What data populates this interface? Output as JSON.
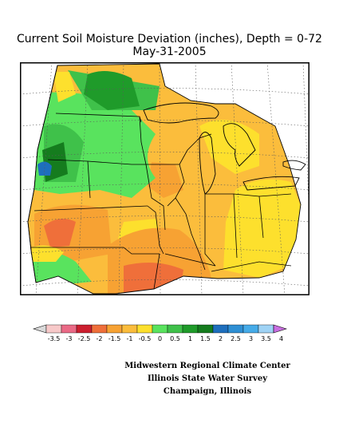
{
  "title": {
    "line1": "Current Soil Moisture Deviation (inches), Depth = 0-72",
    "line2": "May-31-2005"
  },
  "legend": {
    "ticks": [
      "-3.5",
      "-3",
      "-2.5",
      "-2",
      "-1.5",
      "-1",
      "-0.5",
      "0",
      "0.5",
      "1",
      "1.5",
      "2",
      "2.5",
      "3",
      "3.5",
      "4"
    ],
    "colors": [
      "#f7c9c9",
      "#ea6a86",
      "#cc1f2f",
      "#ef6f3a",
      "#f7a233",
      "#fbbd3c",
      "#fde02d",
      "#59e35e",
      "#3fc14a",
      "#1f9b2a",
      "#157c1e",
      "#1e6fbd",
      "#2e8fd4",
      "#45abe8",
      "#9fd3f5"
    ],
    "left_arrow_color": "#d9d9d9",
    "right_arrow_color": "#c86ee0"
  },
  "credits": {
    "line1": "Midwestern Regional Climate Center",
    "line2": "Illinois State Water Survey",
    "line3": "Champaign, Illinois"
  },
  "map_colors": {
    "base": "#fbbd3c",
    "orange": "#f7a233",
    "dark_orange": "#ef6f3a",
    "yellow": "#fde02d",
    "light_green": "#59e35e",
    "green": "#3fc14a",
    "dark_green": "#1f9b2a",
    "darkest_green": "#157c1e",
    "blue": "#1e6fbd"
  }
}
